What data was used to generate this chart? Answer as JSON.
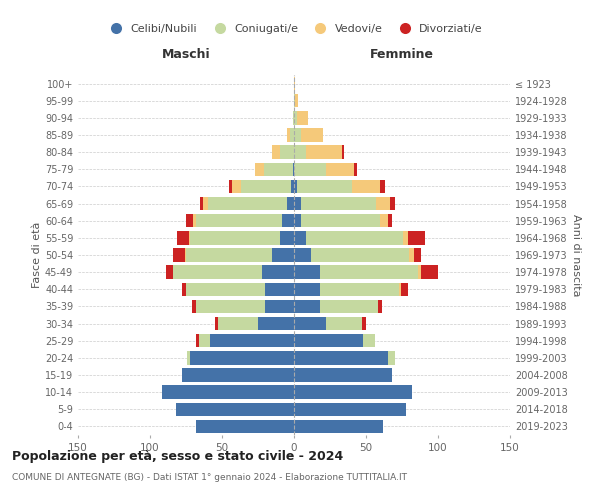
{
  "age_groups": [
    "0-4",
    "5-9",
    "10-14",
    "15-19",
    "20-24",
    "25-29",
    "30-34",
    "35-39",
    "40-44",
    "45-49",
    "50-54",
    "55-59",
    "60-64",
    "65-69",
    "70-74",
    "75-79",
    "80-84",
    "85-89",
    "90-94",
    "95-99",
    "100+"
  ],
  "birth_years": [
    "2019-2023",
    "2014-2018",
    "2009-2013",
    "2004-2008",
    "1999-2003",
    "1994-1998",
    "1989-1993",
    "1984-1988",
    "1979-1983",
    "1974-1978",
    "1969-1973",
    "1964-1968",
    "1959-1963",
    "1954-1958",
    "1949-1953",
    "1944-1948",
    "1939-1943",
    "1934-1938",
    "1929-1933",
    "1924-1928",
    "≤ 1923"
  ],
  "colors": {
    "celibi": "#4472a8",
    "coniugati": "#c5d9a0",
    "vedovi": "#f5c97a",
    "divorziati": "#cc2222"
  },
  "males": {
    "celibi": [
      68,
      82,
      92,
      78,
      72,
      58,
      25,
      20,
      20,
      22,
      15,
      10,
      8,
      5,
      2,
      1,
      0,
      0,
      0,
      0,
      0
    ],
    "coniugati": [
      0,
      0,
      0,
      0,
      2,
      8,
      28,
      48,
      55,
      62,
      60,
      62,
      60,
      55,
      35,
      20,
      10,
      3,
      1,
      0,
      0
    ],
    "vedovi": [
      0,
      0,
      0,
      0,
      0,
      0,
      0,
      0,
      0,
      0,
      1,
      1,
      2,
      3,
      6,
      6,
      5,
      2,
      0,
      0,
      0
    ],
    "divorziati": [
      0,
      0,
      0,
      0,
      0,
      2,
      2,
      3,
      3,
      5,
      8,
      8,
      5,
      2,
      2,
      0,
      0,
      0,
      0,
      0,
      0
    ]
  },
  "females": {
    "celibi": [
      62,
      78,
      82,
      68,
      65,
      48,
      22,
      18,
      18,
      18,
      12,
      8,
      5,
      5,
      2,
      0,
      0,
      0,
      0,
      0,
      0
    ],
    "coniugati": [
      0,
      0,
      0,
      0,
      5,
      8,
      25,
      40,
      55,
      68,
      68,
      68,
      55,
      52,
      38,
      22,
      8,
      5,
      2,
      1,
      0
    ],
    "vedovi": [
      0,
      0,
      0,
      0,
      0,
      0,
      0,
      0,
      1,
      2,
      3,
      3,
      5,
      10,
      20,
      20,
      25,
      15,
      8,
      2,
      1
    ],
    "divorziati": [
      0,
      0,
      0,
      0,
      0,
      0,
      3,
      3,
      5,
      12,
      5,
      12,
      3,
      3,
      3,
      2,
      2,
      0,
      0,
      0,
      0
    ]
  },
  "title": "Popolazione per età, sesso e stato civile - 2024",
  "subtitle": "COMUNE DI ANTEGNATE (BG) - Dati ISTAT 1° gennaio 2024 - Elaborazione TUTTITALIA.IT",
  "xlabel_left": "Maschi",
  "xlabel_right": "Femmine",
  "ylabel_left": "Fasce di età",
  "ylabel_right": "Anni di nascita",
  "legend_labels": [
    "Celibi/Nubili",
    "Coniugati/e",
    "Vedovi/e",
    "Divorziati/e"
  ],
  "xlim": 150,
  "background_color": "#ffffff",
  "grid_color": "#cccccc"
}
